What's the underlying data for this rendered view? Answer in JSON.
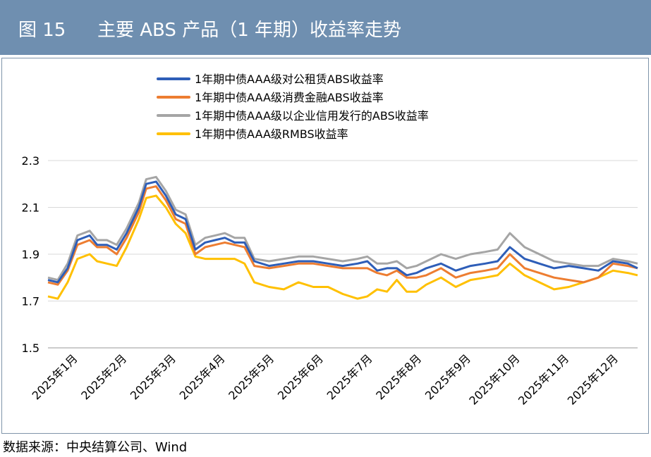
{
  "figure": {
    "number": "图 15",
    "title": "主要 ABS 产品（1 年期）收益率走势"
  },
  "source": "数据来源：中央结算公司、Wind",
  "colors": {
    "header_bg": "#6f8fb0",
    "grid": "#d9d9d9"
  },
  "chart_data": {
    "type": "line",
    "title": "",
    "xlabel": "",
    "ylabel": "",
    "ylim": [
      1.5,
      2.3
    ],
    "yticks": [
      "2.3",
      "2.1",
      "1.9",
      "1.7",
      "1.5"
    ],
    "ytick_values": [
      2.3,
      2.1,
      1.9,
      1.7,
      1.5
    ],
    "x_tick_labels": [
      "2025年1月",
      "2025年2月",
      "2025年3月",
      "2025年4月",
      "2025年5月",
      "2025年6月",
      "2025年7月",
      "2025年8月",
      "2025年9月",
      "2025年10月",
      "2025年11月",
      "2025年12月"
    ],
    "x_range": [
      0,
      12
    ],
    "x": [
      0.0,
      0.2,
      0.4,
      0.6,
      0.85,
      1.0,
      1.2,
      1.4,
      1.6,
      1.85,
      2.0,
      2.2,
      2.4,
      2.6,
      2.8,
      3.0,
      3.2,
      3.4,
      3.6,
      3.8,
      4.0,
      4.2,
      4.5,
      4.8,
      5.1,
      5.4,
      5.7,
      6.0,
      6.3,
      6.5,
      6.7,
      6.9,
      7.1,
      7.3,
      7.5,
      7.7,
      8.0,
      8.3,
      8.6,
      8.9,
      9.15,
      9.4,
      9.7,
      10.0,
      10.3,
      10.6,
      10.9,
      11.2,
      11.5,
      11.8,
      12.0
    ],
    "series": [
      {
        "name": "1年期中债AAA级对公租赁ABS收益率",
        "color": "#2e5eb8",
        "values": [
          1.79,
          1.78,
          1.84,
          1.96,
          1.98,
          1.94,
          1.94,
          1.92,
          1.99,
          2.1,
          2.2,
          2.21,
          2.15,
          2.07,
          2.05,
          1.92,
          1.95,
          1.96,
          1.97,
          1.95,
          1.95,
          1.87,
          1.85,
          1.86,
          1.87,
          1.87,
          1.86,
          1.85,
          1.86,
          1.87,
          1.83,
          1.84,
          1.84,
          1.81,
          1.82,
          1.84,
          1.86,
          1.83,
          1.85,
          1.86,
          1.87,
          1.93,
          1.88,
          1.86,
          1.84,
          1.85,
          1.84,
          1.83,
          1.87,
          1.86,
          1.84
        ]
      },
      {
        "name": "1年期中债AAA级消费金融ABS收益率",
        "color": "#ed7d31",
        "values": [
          1.78,
          1.77,
          1.83,
          1.94,
          1.96,
          1.93,
          1.93,
          1.9,
          1.97,
          2.08,
          2.18,
          2.19,
          2.13,
          2.05,
          2.03,
          1.9,
          1.93,
          1.94,
          1.95,
          1.94,
          1.93,
          1.85,
          1.84,
          1.85,
          1.86,
          1.86,
          1.85,
          1.84,
          1.84,
          1.84,
          1.82,
          1.81,
          1.83,
          1.8,
          1.8,
          1.81,
          1.84,
          1.8,
          1.82,
          1.83,
          1.84,
          1.9,
          1.84,
          1.82,
          1.8,
          1.79,
          1.78,
          1.8,
          1.86,
          1.85,
          1.84
        ]
      },
      {
        "name": "1年期中债AAA级以企业信用发行的ABS收益率",
        "color": "#a5a5a5",
        "values": [
          1.8,
          1.79,
          1.86,
          1.98,
          2.0,
          1.96,
          1.96,
          1.94,
          2.01,
          2.12,
          2.22,
          2.23,
          2.17,
          2.09,
          2.07,
          1.94,
          1.97,
          1.98,
          1.99,
          1.97,
          1.97,
          1.88,
          1.87,
          1.88,
          1.89,
          1.89,
          1.88,
          1.87,
          1.88,
          1.89,
          1.86,
          1.86,
          1.87,
          1.84,
          1.85,
          1.87,
          1.9,
          1.88,
          1.9,
          1.91,
          1.92,
          1.99,
          1.93,
          1.9,
          1.87,
          1.86,
          1.85,
          1.85,
          1.88,
          1.87,
          1.86
        ]
      },
      {
        "name": "1年期中债AAA级RMBS收益率",
        "color": "#ffc000",
        "values": [
          1.72,
          1.71,
          1.78,
          1.88,
          1.9,
          1.87,
          1.86,
          1.85,
          1.93,
          2.05,
          2.14,
          2.15,
          2.1,
          2.03,
          1.99,
          1.89,
          1.88,
          1.88,
          1.88,
          1.88,
          1.86,
          1.78,
          1.76,
          1.75,
          1.78,
          1.76,
          1.76,
          1.73,
          1.71,
          1.72,
          1.75,
          1.74,
          1.79,
          1.74,
          1.74,
          1.77,
          1.8,
          1.76,
          1.79,
          1.8,
          1.81,
          1.86,
          1.81,
          1.78,
          1.75,
          1.76,
          1.78,
          1.8,
          1.83,
          1.82,
          1.81
        ]
      }
    ]
  }
}
